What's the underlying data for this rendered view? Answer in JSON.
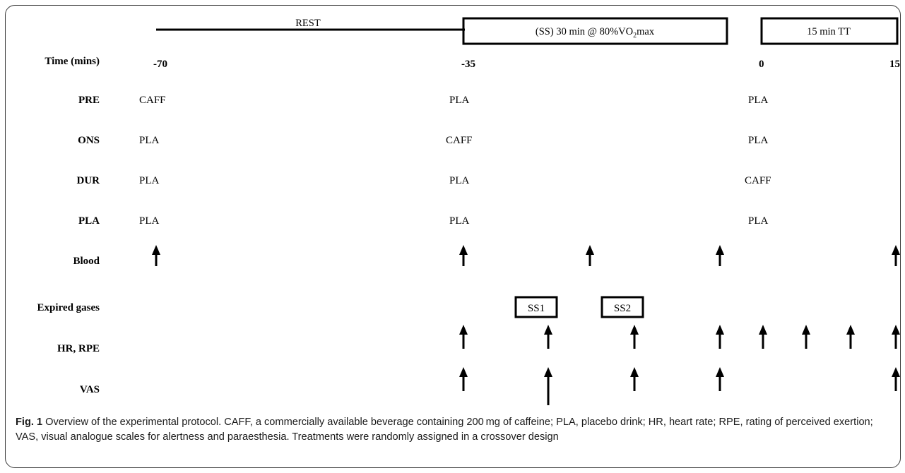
{
  "phases": {
    "rest": "REST",
    "steady_state": "(SS) 30 min @ 80%VO₂max",
    "time_trial": "15 min TT"
  },
  "time_axis": {
    "label": "Time (mins)",
    "ticks": [
      "-70",
      "-35",
      "0",
      "15"
    ]
  },
  "conditions": [
    {
      "label": "PRE",
      "at_minus_70": "CAFF",
      "at_minus_35": "PLA",
      "at_0": "PLA"
    },
    {
      "label": "ONS",
      "at_minus_70": "PLA",
      "at_minus_35": "CAFF",
      "at_0": "PLA"
    },
    {
      "label": "DUR",
      "at_minus_70": "PLA",
      "at_minus_35": "PLA",
      "at_0": "CAFF"
    },
    {
      "label": "PLA",
      "at_minus_70": "PLA",
      "at_minus_35": "PLA",
      "at_0": "PLA"
    }
  ],
  "measures": {
    "blood": "Blood",
    "expired_gases": "Expired gases",
    "hr_rpe": "HR, RPE",
    "vas": "VAS"
  },
  "expired_gas_samples": [
    "SS1",
    "SS2"
  ],
  "caption": {
    "fig_label": "Fig. 1",
    "text": "Overview of the experimental protocol. CAFF, a commercially available beverage containing 200 mg of caffeine; PLA, placebo drink; HR, heart rate; RPE, rating of perceived exertion; VAS, visual analogue scales for alertness and paraesthesia. Treatments were randomly assigned in a crossover design"
  }
}
